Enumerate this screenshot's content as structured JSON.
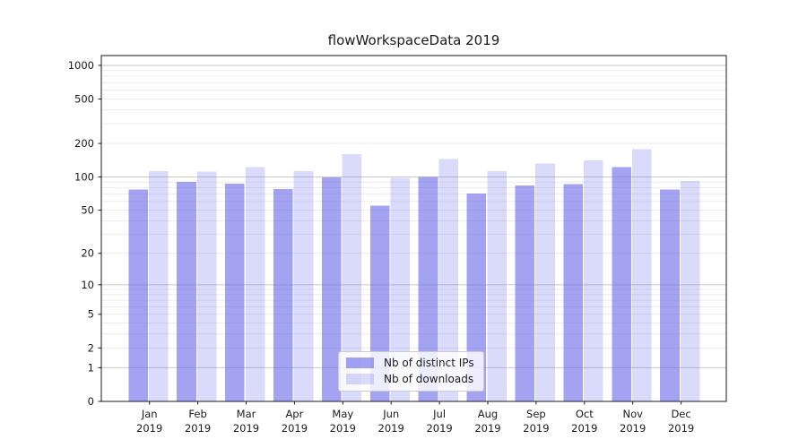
{
  "chart_data": {
    "type": "bar",
    "title": "flowWorkspaceData 2019",
    "xlabel": "",
    "ylabel": "",
    "yscale": "log1p-symlog",
    "ylim": [
      0,
      1200
    ],
    "grid": true,
    "legend_position": "lower center",
    "y_tick_labels": [
      "0",
      "1",
      "2",
      "5",
      "10",
      "20",
      "50",
      "100",
      "200",
      "500",
      "1000"
    ],
    "y_ticks": [
      0,
      1,
      2,
      5,
      10,
      20,
      50,
      100,
      200,
      500,
      1000
    ],
    "categories": [
      {
        "month": "Jan",
        "year": "2019"
      },
      {
        "month": "Feb",
        "year": "2019"
      },
      {
        "month": "Mar",
        "year": "2019"
      },
      {
        "month": "Apr",
        "year": "2019"
      },
      {
        "month": "May",
        "year": "2019"
      },
      {
        "month": "Jun",
        "year": "2019"
      },
      {
        "month": "Jul",
        "year": "2019"
      },
      {
        "month": "Aug",
        "year": "2019"
      },
      {
        "month": "Sep",
        "year": "2019"
      },
      {
        "month": "Oct",
        "year": "2019"
      },
      {
        "month": "Nov",
        "year": "2019"
      },
      {
        "month": "Dec",
        "year": "2019"
      }
    ],
    "series": [
      {
        "name": "Nb of distinct IPs",
        "color": "rgba(99,99,233,0.59)",
        "values": [
          77,
          90,
          87,
          78,
          99,
          55,
          100,
          71,
          84,
          86,
          123,
          77
        ]
      },
      {
        "name": "Nb of downloads",
        "color": "rgba(99,99,233,0.24)",
        "values": [
          113,
          112,
          123,
          113,
          161,
          98,
          145,
          113,
          132,
          141,
          178,
          92
        ]
      }
    ]
  },
  "colors": {
    "grid_minor": "#ececec",
    "grid_major": "#c9c9c9",
    "axis": "#1a1a1a",
    "text": "#1a1a1a"
  }
}
